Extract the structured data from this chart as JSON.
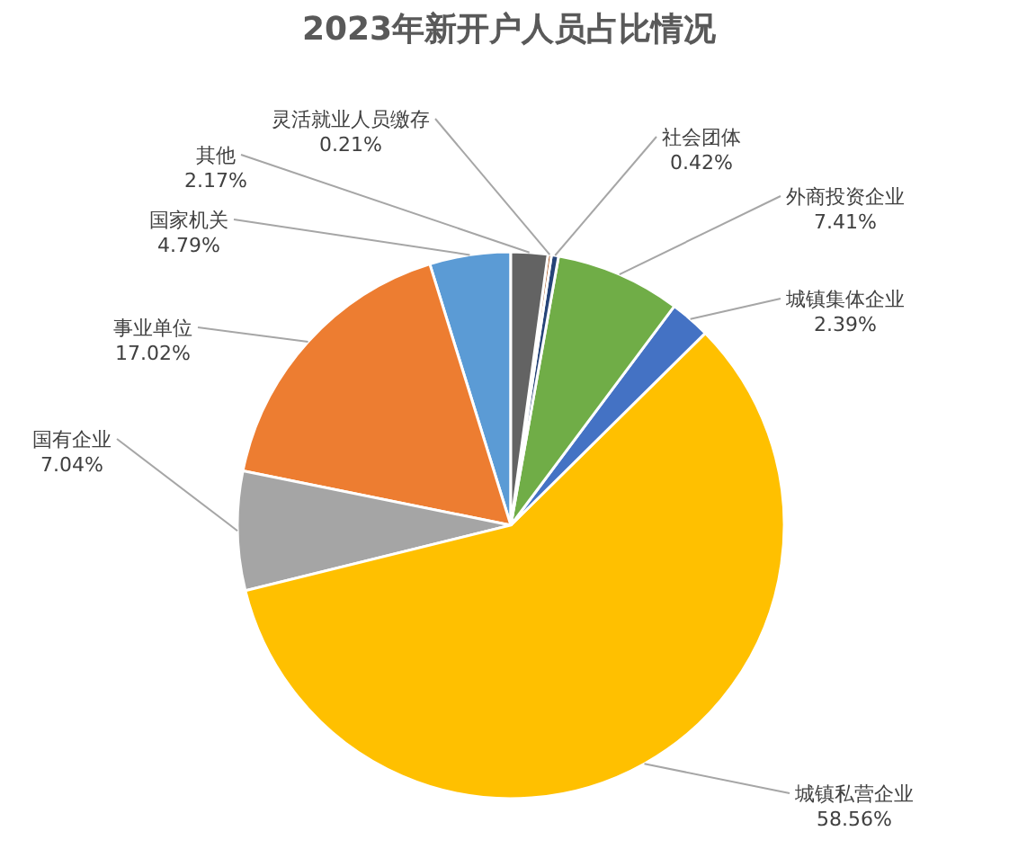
{
  "chart_data": {
    "type": "pie",
    "title": "2023年新开户人员占比情况",
    "categories": [
      "国家机关",
      "事业单位",
      "国有企业",
      "城镇私营企业",
      "城镇集体企业",
      "外商投资企业",
      "社会团体",
      "灵活就业人员缴存",
      "其他"
    ],
    "values": [
      4.79,
      17.02,
      7.04,
      58.56,
      2.39,
      7.41,
      0.42,
      0.21,
      2.17
    ],
    "value_labels": [
      "4.79%",
      "17.02%",
      "7.04%",
      "58.56%",
      "2.39%",
      "7.41%",
      "0.42%",
      "0.21%",
      "2.17%"
    ],
    "colors": [
      "#5b9bd5",
      "#ed7d31",
      "#a5a5a5",
      "#ffc000",
      "#4472c4",
      "#70ad47",
      "#264478",
      "#9e480e",
      "#636363"
    ],
    "legend": false
  }
}
